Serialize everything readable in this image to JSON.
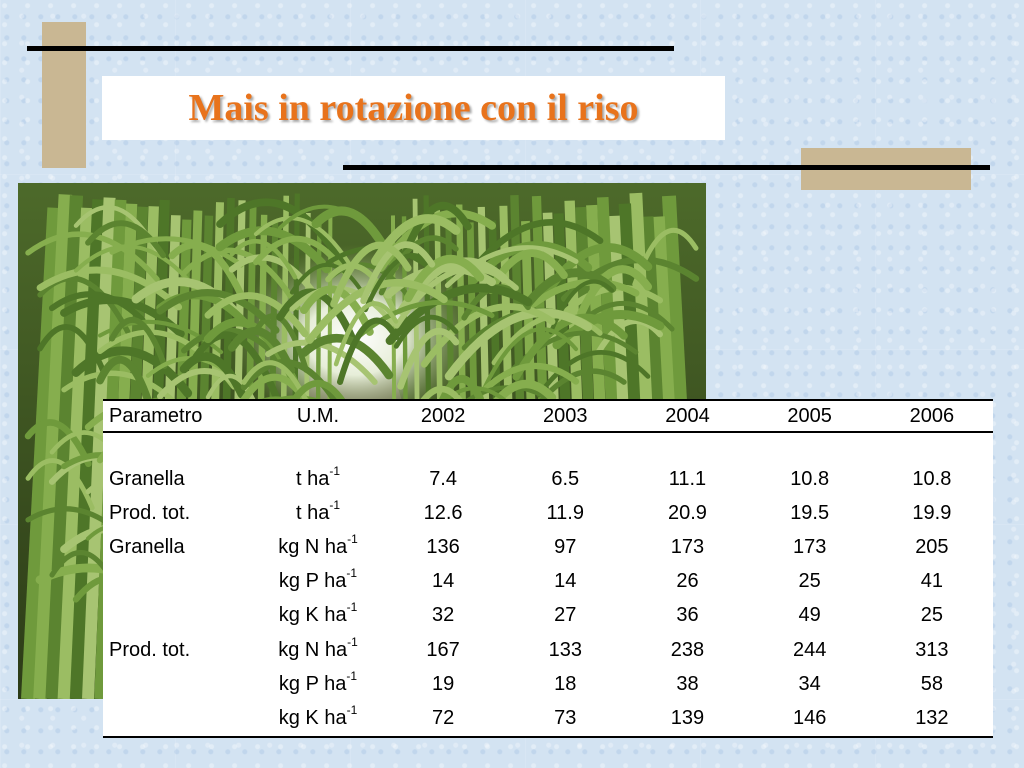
{
  "slide": {
    "title": "Mais in rotazione con il riso",
    "title_color": "#e8731c",
    "accent_color": "#c9b793"
  },
  "photo": {
    "icon": "corn-field-photo"
  },
  "table": {
    "headers": [
      "Parametro",
      "U.M.",
      "2002",
      "2003",
      "2004",
      "2005",
      "2006"
    ],
    "rows": [
      {
        "param": "Granella",
        "unit": "t ha",
        "exp": "-1",
        "values": [
          "7.4",
          "6.5",
          "11.1",
          "10.8",
          "10.8"
        ]
      },
      {
        "param": "Prod. tot.",
        "unit": "t ha",
        "exp": "-1",
        "values": [
          "12.6",
          "11.9",
          "20.9",
          "19.5",
          "19.9"
        ]
      },
      {
        "param": "Granella",
        "unit": "kg N ha",
        "exp": "-1",
        "values": [
          "136",
          "97",
          "173",
          "173",
          "205"
        ]
      },
      {
        "param": "",
        "unit": "kg P ha",
        "exp": "-1",
        "values": [
          "14",
          "14",
          "26",
          "25",
          "41"
        ]
      },
      {
        "param": "",
        "unit": "kg K ha",
        "exp": "-1",
        "values": [
          "32",
          "27",
          "36",
          "49",
          "25"
        ]
      },
      {
        "param": "Prod. tot.",
        "unit": "kg N ha",
        "exp": "-1",
        "values": [
          "167",
          "133",
          "238",
          "244",
          "313"
        ]
      },
      {
        "param": "",
        "unit": "kg P ha",
        "exp": "-1",
        "values": [
          "19",
          "18",
          "38",
          "34",
          "58"
        ]
      },
      {
        "param": "",
        "unit": "kg K ha",
        "exp": "-1",
        "values": [
          "72",
          "73",
          "139",
          "146",
          "132"
        ]
      }
    ]
  }
}
